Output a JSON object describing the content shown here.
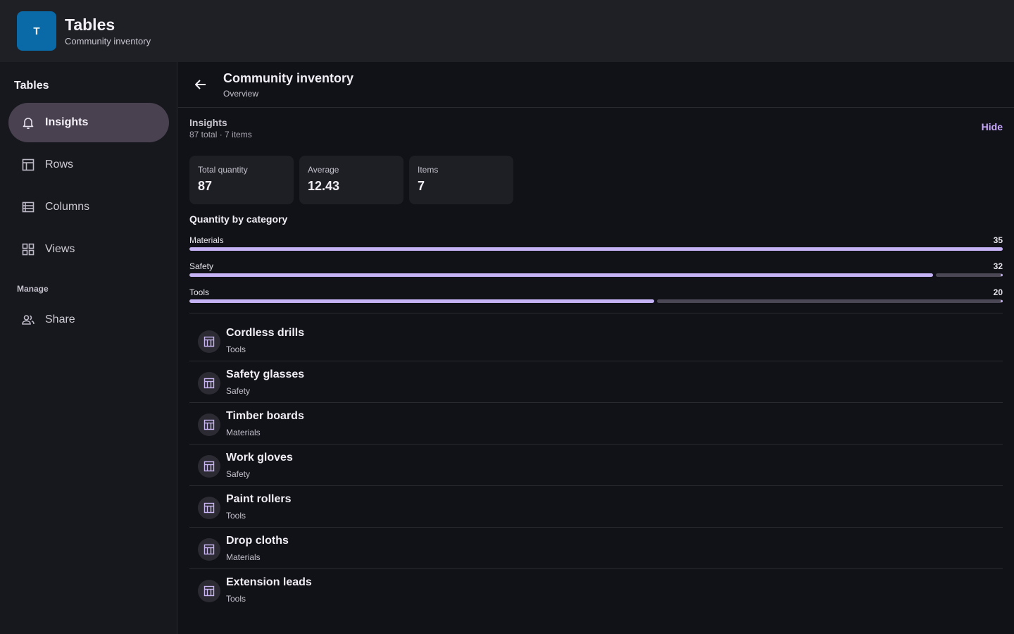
{
  "app": {
    "logo_letter": "T",
    "title": "Tables",
    "subtitle": "Community inventory"
  },
  "sidebar": {
    "heading": "Tables",
    "items": [
      {
        "label": "Insights",
        "icon": "bell-icon",
        "active": true
      },
      {
        "label": "Rows",
        "icon": "table-icon",
        "active": false
      },
      {
        "label": "Columns",
        "icon": "columns-icon",
        "active": false
      },
      {
        "label": "Views",
        "icon": "grid-icon",
        "active": false
      }
    ],
    "section_label": "Manage",
    "manage_items": [
      {
        "label": "Share",
        "icon": "people-icon"
      }
    ]
  },
  "header": {
    "title": "Community inventory",
    "subtitle": "Overview",
    "back_icon": "arrow-left-icon"
  },
  "insights": {
    "title": "Insights",
    "summary": "87 total · 7 items",
    "hide_label": "Hide",
    "stats": [
      {
        "label": "Total quantity",
        "value": "87"
      },
      {
        "label": "Average",
        "value": "12.43"
      },
      {
        "label": "Items",
        "value": "7"
      }
    ],
    "category_title": "Quantity by category",
    "categories": [
      {
        "name": "Materials",
        "value": "35",
        "fraction": 1.0
      },
      {
        "name": "Safety",
        "value": "32",
        "fraction": 0.9143
      },
      {
        "name": "Tools",
        "value": "20",
        "fraction": 0.5714
      }
    ]
  },
  "items": [
    {
      "name": "Cordless drills",
      "category": "Tools"
    },
    {
      "name": "Safety glasses",
      "category": "Safety"
    },
    {
      "name": "Timber boards",
      "category": "Materials"
    },
    {
      "name": "Work gloves",
      "category": "Safety"
    },
    {
      "name": "Paint rollers",
      "category": "Tools"
    },
    {
      "name": "Drop cloths",
      "category": "Materials"
    },
    {
      "name": "Extension leads",
      "category": "Tools"
    }
  ],
  "colors": {
    "accent": "#c5b3f5",
    "active_nav": "#4a4150",
    "logo": "#0a6aa8"
  }
}
